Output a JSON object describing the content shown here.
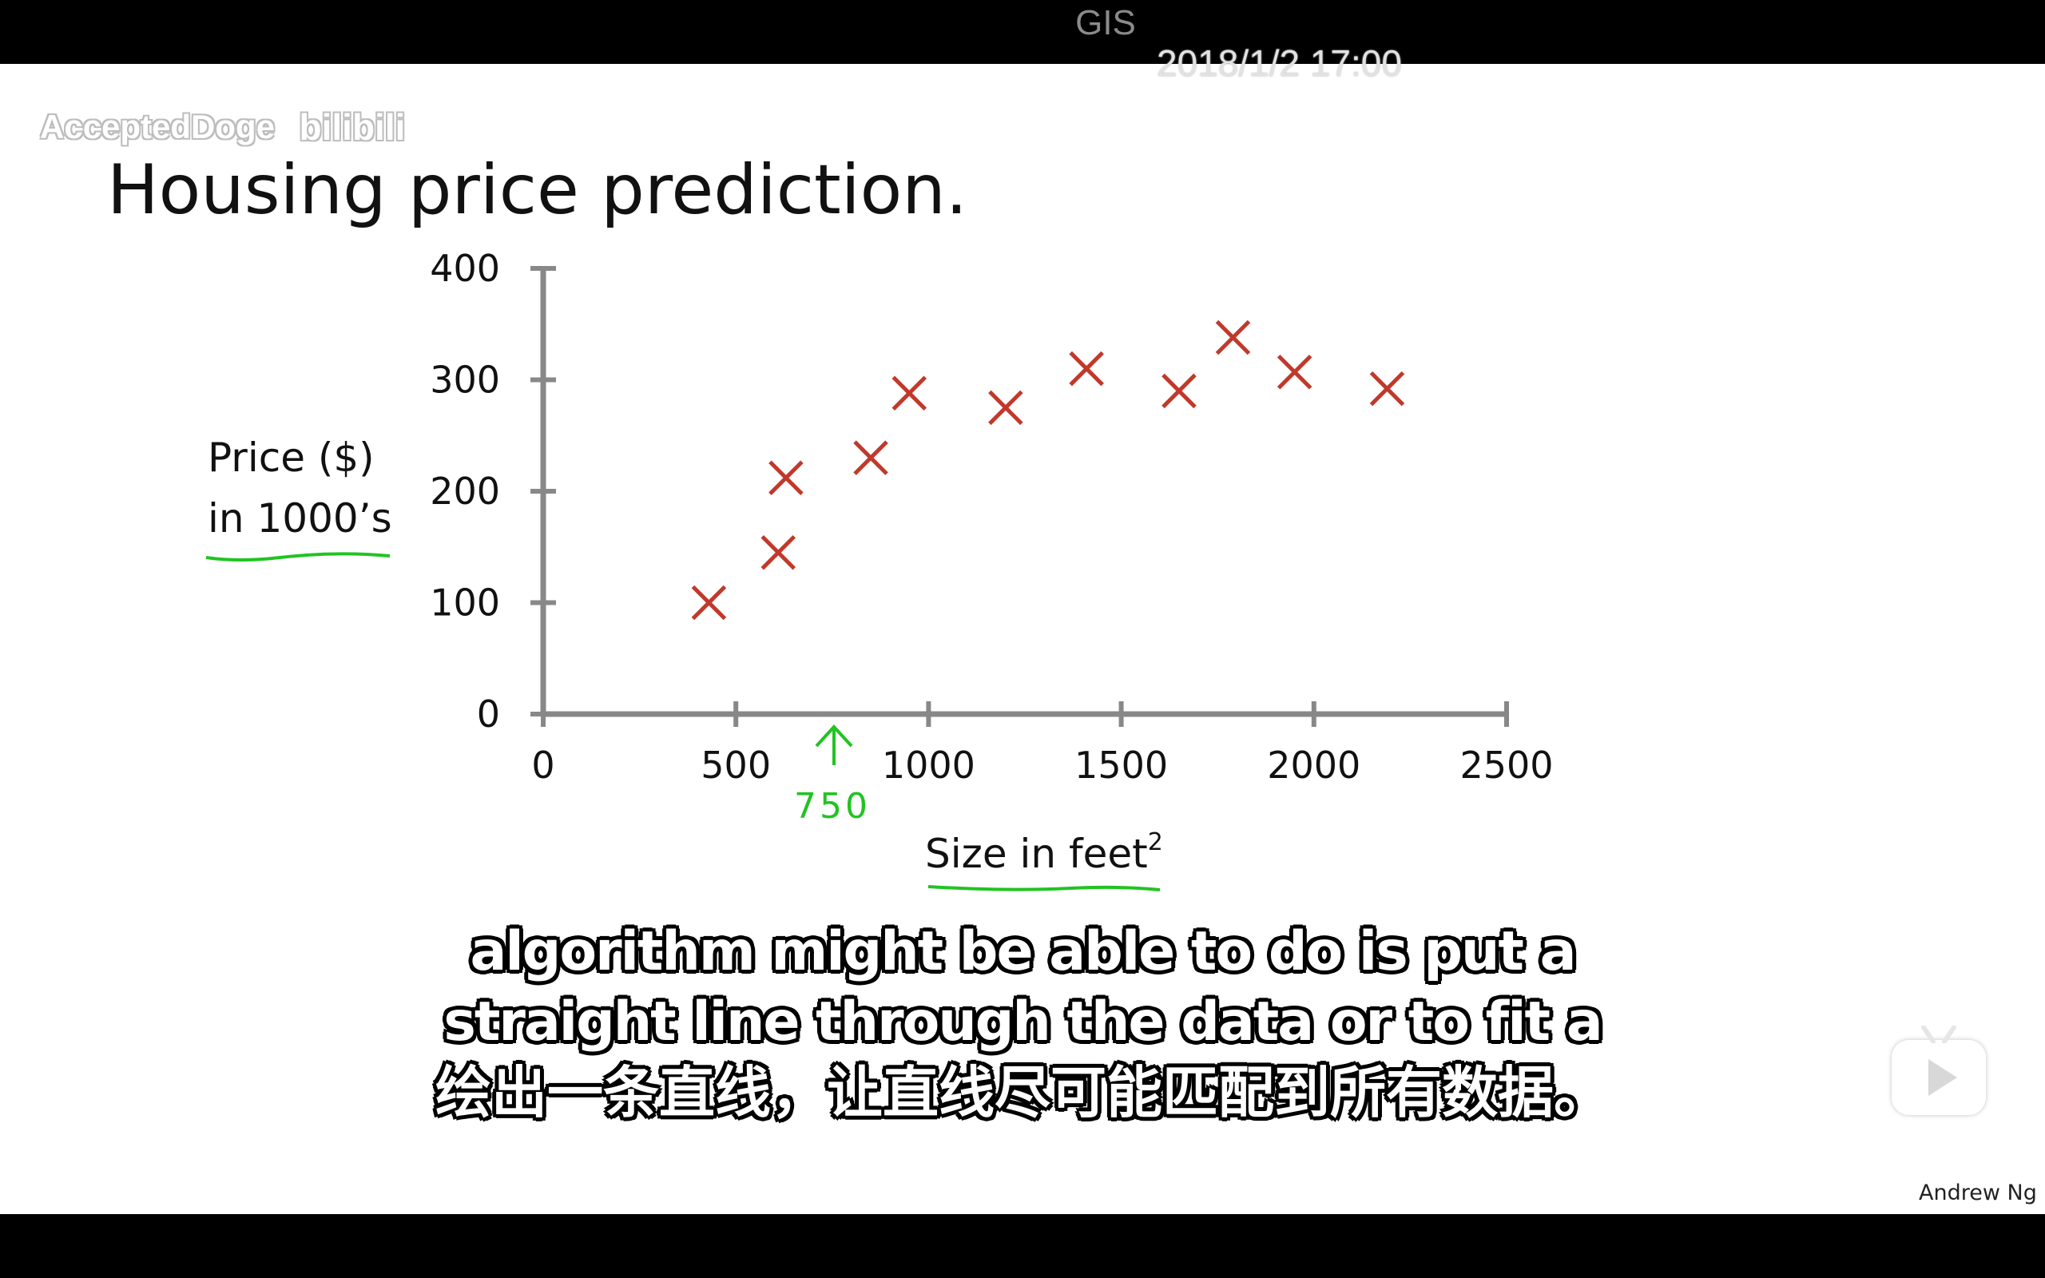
{
  "window": {
    "title": "GIS"
  },
  "overlay": {
    "timestamp": "2018/1/2 17:00",
    "watermark_user": "AcceptedDoge",
    "watermark_logo": "bilibili"
  },
  "slide": {
    "title": "Housing price prediction.",
    "author": "Andrew Ng",
    "annotation_arrow_label": "750"
  },
  "chart_data": {
    "type": "scatter",
    "title": "Housing price prediction.",
    "xlabel": "Size in feet",
    "xlabel_sup": "2",
    "ylabel_line1": "Price ($)",
    "ylabel_line2": "in 1000’s",
    "xlim": [
      0,
      2500
    ],
    "ylim": [
      0,
      400
    ],
    "xticks": [
      "0",
      "500",
      "1000",
      "1500",
      "2000",
      "2500"
    ],
    "yticks": [
      "0",
      "100",
      "200",
      "300",
      "400"
    ],
    "grid": false,
    "marker": "x",
    "marker_color": "#c0392b",
    "points": [
      {
        "x": 430,
        "y": 100
      },
      {
        "x": 610,
        "y": 145
      },
      {
        "x": 630,
        "y": 212
      },
      {
        "x": 850,
        "y": 230
      },
      {
        "x": 950,
        "y": 288
      },
      {
        "x": 1200,
        "y": 275
      },
      {
        "x": 1410,
        "y": 310
      },
      {
        "x": 1650,
        "y": 290
      },
      {
        "x": 1790,
        "y": 338
      },
      {
        "x": 1950,
        "y": 307
      },
      {
        "x": 2190,
        "y": 292
      }
    ]
  },
  "subtitles": {
    "line1": "algorithm might be able to do is put a",
    "line2": "straight line through the data or to fit a",
    "line3": "绘出一条直线，让直线尽可能匹配到所有数据。"
  },
  "colors": {
    "axis": "#888888",
    "marker": "#c0392b",
    "annotation": "#22c322"
  }
}
